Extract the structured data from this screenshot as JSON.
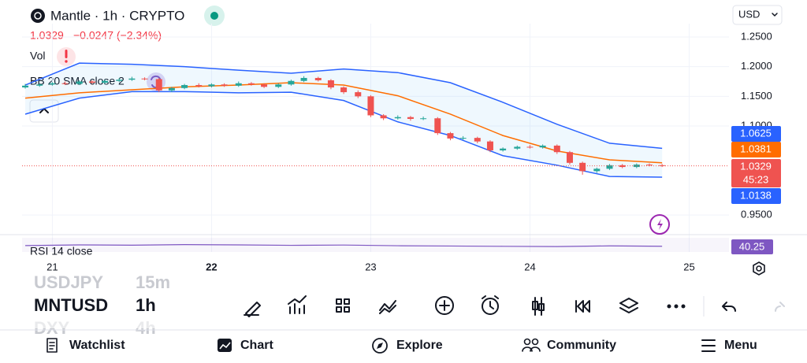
{
  "header": {
    "title": "Mantle · 1h · CRYPTO",
    "price": "1.0329",
    "change": "−0.0247 (−2.34%)",
    "currency": "USD"
  },
  "indicators": {
    "volume": "Vol",
    "bollinger": "BB 20 SMA close 2"
  },
  "chart_data": {
    "type": "candlestick",
    "x": [
      20.83,
      20.92,
      21,
      21.08,
      21.17,
      21.25,
      21.33,
      21.42,
      21.5,
      21.58,
      21.67,
      21.75,
      21.83,
      21.92,
      22,
      22.08,
      22.17,
      22.25,
      22.33,
      22.42,
      22.5,
      22.58,
      22.67,
      22.75,
      22.83,
      22.92,
      23,
      23.08,
      23.17,
      23.25,
      23.33,
      23.42,
      23.5,
      23.58,
      23.67,
      23.75,
      23.83,
      23.92,
      24,
      24.08,
      24.17,
      24.25,
      24.33,
      24.42,
      24.5,
      24.58,
      24.67,
      24.75,
      24.83
    ],
    "open": [
      1.165,
      1.168,
      1.17,
      1.172,
      1.171,
      1.175,
      1.173,
      1.176,
      1.178,
      1.18,
      1.179,
      1.16,
      1.164,
      1.169,
      1.167,
      1.17,
      1.168,
      1.172,
      1.17,
      1.166,
      1.17,
      1.176,
      1.181,
      1.177,
      1.165,
      1.157,
      1.15,
      1.118,
      1.113,
      1.115,
      1.112,
      1.113,
      1.088,
      1.079,
      1.08,
      1.074,
      1.059,
      1.062,
      1.065,
      1.064,
      1.067,
      1.056,
      1.038,
      1.024,
      1.028,
      1.034,
      1.031,
      1.035,
      1.034
    ],
    "high": [
      1.171,
      1.172,
      1.174,
      1.175,
      1.177,
      1.177,
      1.178,
      1.181,
      1.183,
      1.182,
      1.181,
      1.166,
      1.171,
      1.172,
      1.172,
      1.172,
      1.175,
      1.174,
      1.172,
      1.172,
      1.178,
      1.184,
      1.183,
      1.179,
      1.167,
      1.16,
      1.152,
      1.12,
      1.118,
      1.117,
      1.116,
      1.115,
      1.09,
      1.083,
      1.082,
      1.076,
      1.064,
      1.067,
      1.068,
      1.069,
      1.069,
      1.058,
      1.04,
      1.03,
      1.036,
      1.036,
      1.037,
      1.037,
      1.036
    ],
    "low": [
      1.163,
      1.166,
      1.168,
      1.169,
      1.169,
      1.171,
      1.171,
      1.174,
      1.176,
      1.177,
      1.157,
      1.157,
      1.162,
      1.165,
      1.165,
      1.166,
      1.166,
      1.168,
      1.164,
      1.164,
      1.168,
      1.174,
      1.175,
      1.162,
      1.154,
      1.147,
      1.115,
      1.11,
      1.111,
      1.109,
      1.11,
      1.085,
      1.076,
      1.077,
      1.071,
      1.056,
      1.057,
      1.06,
      1.062,
      1.062,
      1.053,
      1.035,
      1.018,
      1.021,
      1.026,
      1.029,
      1.029,
      1.032,
      1.031
    ],
    "close": [
      1.168,
      1.17,
      1.172,
      1.171,
      1.175,
      1.173,
      1.176,
      1.178,
      1.18,
      1.179,
      1.16,
      1.164,
      1.169,
      1.167,
      1.17,
      1.168,
      1.172,
      1.17,
      1.166,
      1.17,
      1.176,
      1.181,
      1.177,
      1.165,
      1.157,
      1.15,
      1.118,
      1.113,
      1.115,
      1.112,
      1.113,
      1.088,
      1.079,
      1.08,
      1.074,
      1.059,
      1.062,
      1.065,
      1.064,
      1.067,
      1.056,
      1.038,
      1.024,
      1.028,
      1.034,
      1.031,
      1.035,
      1.034,
      1.0329
    ],
    "up_color": "#26a69a",
    "down_color": "#ef5350",
    "bands": {
      "x": [
        20.83,
        21.17,
        21.5,
        21.83,
        22.17,
        22.5,
        22.83,
        23.17,
        23.5,
        23.83,
        24.17,
        24.5,
        24.83
      ],
      "upper": {
        "color": "#2962ff",
        "values": [
          1.169,
          1.206,
          1.204,
          1.2,
          1.194,
          1.189,
          1.196,
          1.19,
          1.173,
          1.14,
          1.103,
          1.071,
          1.0625
        ]
      },
      "basis": {
        "color": "#ff6d00",
        "values": [
          1.147,
          1.156,
          1.161,
          1.166,
          1.169,
          1.173,
          1.169,
          1.151,
          1.12,
          1.084,
          1.058,
          1.043,
          1.0381
        ]
      },
      "lower": {
        "color": "#2962ff",
        "values": [
          1.12,
          1.147,
          1.158,
          1.158,
          1.156,
          1.157,
          1.143,
          1.107,
          1.084,
          1.05,
          1.034,
          1.015,
          1.0138
        ]
      },
      "fill": "#2196f3"
    },
    "countdown": "45:23",
    "xlim": [
      20.81,
      25.25
    ],
    "xticks": [
      21,
      22,
      23,
      24,
      25
    ],
    "ylim": [
      0.921,
      1.2725
    ],
    "yticks": [
      {
        "value": 1.25,
        "label": "1.2500"
      },
      {
        "value": 1.2,
        "label": "1.2000"
      },
      {
        "value": 1.15,
        "label": "1.1500"
      },
      {
        "value": 1.1,
        "label": "1.1000"
      },
      {
        "value": 0.95,
        "label": "0.9500"
      }
    ],
    "grid": true,
    "rsi": {
      "label": "RSI 14 close",
      "color": "#7e57c2",
      "ylim": [
        0,
        100
      ],
      "x": [
        20.83,
        21.17,
        21.5,
        21.83,
        22.17,
        22.5,
        22.83,
        23.17,
        23.5,
        23.83,
        24.17,
        24.5,
        24.83
      ],
      "values": [
        45,
        50,
        48,
        52,
        50,
        47,
        49,
        44,
        42,
        40,
        38,
        43,
        40.25
      ]
    }
  },
  "symbols": [
    {
      "name": "USDJPY",
      "interval": "15m"
    },
    {
      "name": "MNTUSD",
      "interval": "1h"
    },
    {
      "name": "DXY",
      "interval": "4h"
    }
  ],
  "nav": [
    "Watchlist",
    "Chart",
    "Explore",
    "Community",
    "Menu"
  ]
}
